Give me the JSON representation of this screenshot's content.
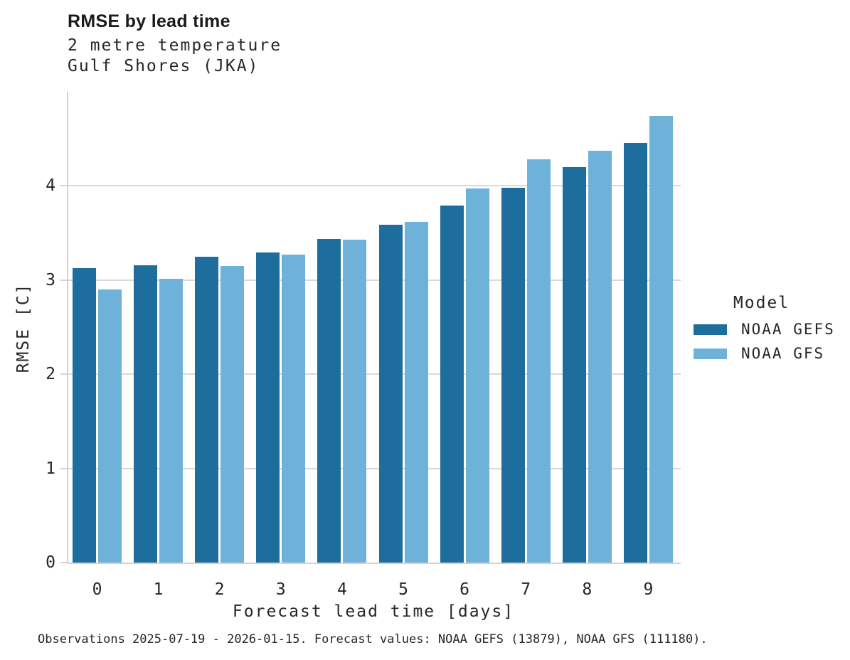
{
  "chart_data": {
    "type": "bar",
    "title": "RMSE by lead time",
    "subtitle_lines": [
      "2 metre temperature",
      "Gulf Shores (JKA)"
    ],
    "categories": [
      "0",
      "1",
      "2",
      "3",
      "4",
      "5",
      "6",
      "7",
      "8",
      "9"
    ],
    "series": [
      {
        "name": "NOAA GEFS",
        "color": "#1d6d9d",
        "values": [
          3.13,
          3.16,
          3.25,
          3.29,
          3.44,
          3.59,
          3.79,
          3.98,
          4.2,
          4.46
        ]
      },
      {
        "name": "NOAA GFS",
        "color": "#6fb2d9",
        "values": [
          2.9,
          3.01,
          3.15,
          3.27,
          3.43,
          3.62,
          3.97,
          4.28,
          4.37,
          4.74
        ]
      }
    ],
    "xlabel": "Forecast lead time [days]",
    "ylabel": "RMSE [C]",
    "yticks": [
      0,
      1,
      2,
      3,
      4
    ],
    "ylim": [
      0,
      5
    ],
    "grid": true,
    "legend_title": "Model",
    "legend_position": "right"
  },
  "caption": "Observations 2025-07-19 - 2026-01-15. Forecast values: NOAA GEFS (13879), NOAA GFS (111180).",
  "colors": {
    "gefs_bar": "#1d6d9d",
    "gfs_bar": "#6fb2d9",
    "axis_line": "#d3d3d3",
    "gridline": "#d9d9d9",
    "text": "#262626",
    "background": "#ffffff"
  }
}
